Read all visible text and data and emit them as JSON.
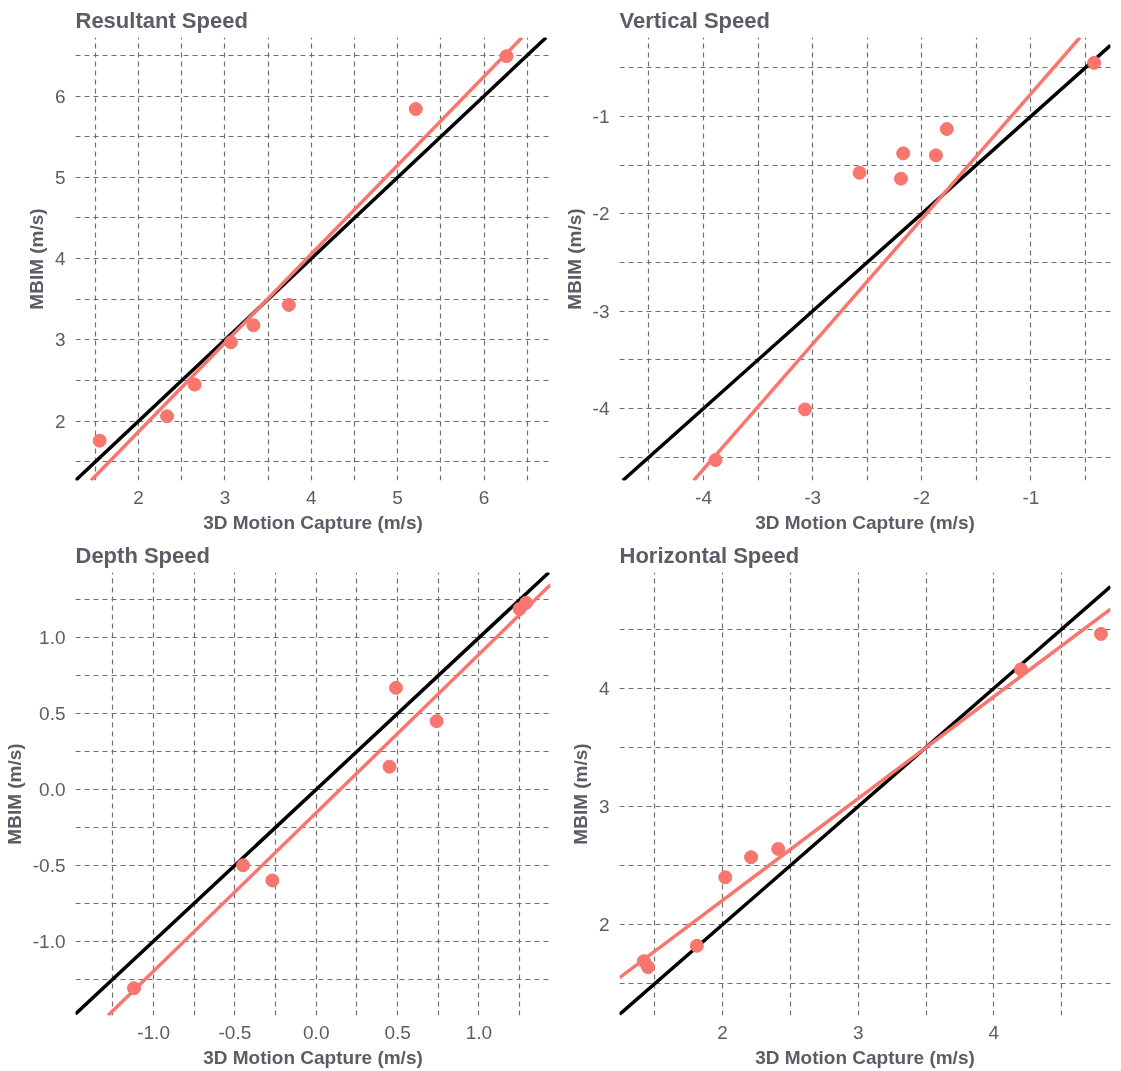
{
  "chart_data": [
    {
      "type": "scatter",
      "title": "Resultant Speed",
      "xlabel": "3D Motion Capture (m/s)",
      "ylabel": "MBIM (m/s)",
      "xlim": [
        1.27,
        6.77
      ],
      "ylim": [
        1.27,
        6.72
      ],
      "grid": true,
      "xticks": [
        {
          "value": 1.5,
          "label": null
        },
        2,
        {
          "value": 2.5,
          "label": null
        },
        3,
        {
          "value": 3.5,
          "label": null
        },
        4,
        {
          "value": 4.5,
          "label": null
        },
        5,
        {
          "value": 5.5,
          "label": null
        },
        6,
        {
          "value": 6.5,
          "label": null
        }
      ],
      "yticks": [
        {
          "value": 1.5,
          "label": null
        },
        2,
        {
          "value": 2.5,
          "label": null
        },
        3,
        {
          "value": 3.5,
          "label": null
        },
        4,
        {
          "value": 4.5,
          "label": null
        },
        5,
        {
          "value": 5.5,
          "label": null
        },
        6,
        {
          "value": 6.5,
          "label": null
        }
      ],
      "series": [
        {
          "type": "line",
          "color": "#000000",
          "x": [
            1.27,
            6.72
          ],
          "values": [
            1.27,
            6.72
          ]
        },
        {
          "type": "line",
          "color": "#f8766d",
          "x": [
            1.45,
            6.44
          ],
          "values": [
            1.27,
            6.72
          ]
        },
        {
          "marker": "circle",
          "color": "#f8766d",
          "x": [
            1.55,
            2.33,
            2.65,
            3.07,
            3.33,
            3.74,
            5.21,
            6.26
          ],
          "values": [
            1.76,
            2.06,
            2.45,
            2.97,
            3.18,
            3.43,
            5.84,
            6.49
          ]
        }
      ]
    },
    {
      "type": "scatter",
      "title": "Vertical Speed",
      "xlabel": "3D Motion Capture (m/s)",
      "ylabel": "MBIM (m/s)",
      "xlim": [
        -4.77,
        -0.27
      ],
      "ylim": [
        -4.74,
        -0.19
      ],
      "grid": true,
      "xticks": [
        {
          "value": -4.5,
          "label": null
        },
        -4,
        {
          "value": -3.5,
          "label": null
        },
        -3,
        {
          "value": -2.5,
          "label": null
        },
        -2,
        {
          "value": -1.5,
          "label": null
        },
        -1,
        {
          "value": -0.5,
          "label": null
        }
      ],
      "yticks": [
        {
          "value": -4.5,
          "label": null
        },
        -4,
        {
          "value": -3.5,
          "label": null
        },
        -3,
        {
          "value": -2.5,
          "label": null
        },
        -2,
        {
          "value": -1.5,
          "label": null
        },
        -1,
        {
          "value": -0.5,
          "label": null
        }
      ],
      "series": [
        {
          "type": "line",
          "color": "#000000",
          "x": [
            -4.74,
            -0.27
          ],
          "values": [
            -4.74,
            -0.27
          ]
        },
        {
          "type": "line",
          "color": "#f8766d",
          "x": [
            -4.09,
            -0.55
          ],
          "values": [
            -4.74,
            -0.19
          ]
        },
        {
          "marker": "circle",
          "color": "#f8766d",
          "x": [
            -3.89,
            -3.07,
            -2.57,
            -2.19,
            -2.17,
            -1.87,
            -1.77,
            -0.42
          ],
          "values": [
            -4.53,
            -4.01,
            -1.58,
            -1.64,
            -1.38,
            -1.4,
            -1.13,
            -0.45
          ]
        }
      ]
    },
    {
      "type": "scatter",
      "title": "Depth Speed",
      "xlabel": "3D Motion Capture (m/s)",
      "ylabel": "MBIM (m/s)",
      "xlim": [
        -1.48,
        1.44
      ],
      "ylim": [
        -1.49,
        1.43
      ],
      "grid": true,
      "xticks": [
        {
          "value": -1.25,
          "label": null
        },
        {
          "value": -1.0,
          "label": "-1.0"
        },
        {
          "value": -0.75,
          "label": null
        },
        -0.5,
        {
          "value": -0.25,
          "label": null
        },
        {
          "value": 0,
          "label": "0.0"
        },
        {
          "value": 0.25,
          "label": null
        },
        0.5,
        {
          "value": 0.75,
          "label": null
        },
        {
          "value": 1.0,
          "label": "1.0"
        },
        {
          "value": 1.25,
          "label": null
        }
      ],
      "yticks": [
        {
          "value": -1.25,
          "label": null
        },
        {
          "value": -1.0,
          "label": "-1.0"
        },
        {
          "value": -0.75,
          "label": null
        },
        -0.5,
        {
          "value": -0.25,
          "label": null
        },
        {
          "value": 0,
          "label": "0.0"
        },
        {
          "value": 0.25,
          "label": null
        },
        0.5,
        {
          "value": 0.75,
          "label": null
        },
        {
          "value": 1.0,
          "label": "1.0"
        },
        {
          "value": 1.25,
          "label": null
        }
      ],
      "series": [
        {
          "type": "line",
          "color": "#000000",
          "x": [
            -1.48,
            1.43
          ],
          "values": [
            -1.48,
            1.43
          ]
        },
        {
          "type": "line",
          "color": "#f8766d",
          "x": [
            -1.28,
            1.44
          ],
          "values": [
            -1.49,
            1.35
          ]
        },
        {
          "marker": "circle",
          "color": "#f8766d",
          "x": [
            -1.12,
            -0.45,
            -0.27,
            0.45,
            0.49,
            0.74,
            1.25,
            1.29
          ],
          "values": [
            -1.31,
            -0.5,
            -0.6,
            0.15,
            0.67,
            0.45,
            1.19,
            1.23
          ]
        }
      ]
    },
    {
      "type": "scatter",
      "title": "Horizontal Speed",
      "xlabel": "3D Motion Capture (m/s)",
      "ylabel": "MBIM (m/s)",
      "xlim": [
        1.24,
        4.86
      ],
      "ylim": [
        1.23,
        4.98
      ],
      "grid": true,
      "xticks": [
        {
          "value": 1.5,
          "label": null
        },
        2,
        {
          "value": 2.5,
          "label": null
        },
        3,
        {
          "value": 3.5,
          "label": null
        },
        4,
        {
          "value": 4.5,
          "label": null
        }
      ],
      "yticks": [
        {
          "value": 1.5,
          "label": null
        },
        2,
        {
          "value": 2.5,
          "label": null
        },
        3,
        {
          "value": 3.5,
          "label": null
        },
        4,
        {
          "value": 4.5,
          "label": null
        }
      ],
      "series": [
        {
          "type": "line",
          "color": "#000000",
          "x": [
            1.24,
            4.86
          ],
          "values": [
            1.24,
            4.86
          ]
        },
        {
          "type": "line",
          "color": "#f8766d",
          "x": [
            1.24,
            4.86
          ],
          "values": [
            1.55,
            4.67
          ]
        },
        {
          "marker": "circle",
          "color": "#f8766d",
          "x": [
            1.42,
            1.45,
            1.81,
            2.02,
            2.21,
            2.41,
            4.2,
            4.79
          ],
          "values": [
            1.69,
            1.64,
            1.82,
            2.4,
            2.57,
            2.64,
            4.16,
            4.46
          ]
        }
      ]
    }
  ]
}
